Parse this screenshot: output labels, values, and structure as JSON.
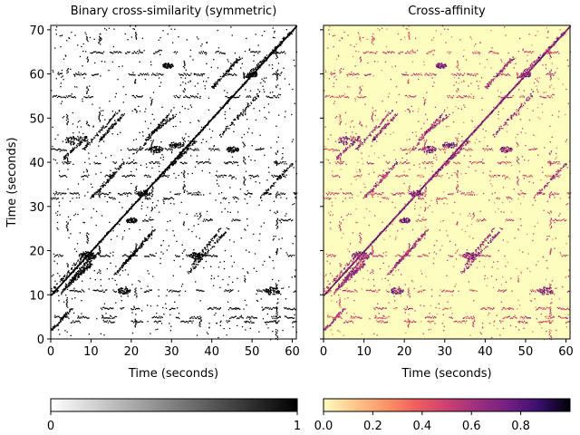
{
  "chart_data": [
    {
      "type": "heatmap",
      "title": "Binary cross-similarity (symmetric)",
      "xlabel": "Time (seconds)",
      "ylabel": "Time (seconds)",
      "xlim": [
        0,
        61
      ],
      "ylim": [
        0,
        71
      ],
      "xticks": [
        0,
        10,
        20,
        30,
        40,
        50,
        60
      ],
      "yticks": [
        0,
        10,
        20,
        30,
        40,
        50,
        60,
        70
      ],
      "colormap": "gray_r",
      "colorbar": {
        "range": [
          0,
          1
        ],
        "ticks": [
          "0",
          "1"
        ],
        "placement": "bottom"
      },
      "structure": {
        "main_diagonal_offset_seconds": 10,
        "diagonal_segments": [
          {
            "x": [
              0,
              9
            ],
            "y": [
              11,
              20
            ]
          },
          {
            "x": [
              2,
              10
            ],
            "y": [
              10,
              19
            ]
          },
          {
            "x": [
              3,
              12
            ],
            "y": [
              11,
              20
            ]
          },
          {
            "x": [
              5,
              10
            ],
            "y": [
              13,
              17
            ]
          },
          {
            "x": [
              3,
              9
            ],
            "y": [
              41,
              46
            ]
          },
          {
            "x": [
              8,
              17
            ],
            "y": [
              43,
              52
            ]
          },
          {
            "x": [
              12,
              18
            ],
            "y": [
              45,
              51
            ]
          },
          {
            "x": [
              22,
              30
            ],
            "y": [
              43,
              52
            ]
          },
          {
            "x": [
              24,
              31
            ],
            "y": [
              46,
              51
            ]
          },
          {
            "x": [
              16,
              25
            ],
            "y": [
              15,
              24
            ]
          },
          {
            "x": [
              18,
              26
            ],
            "y": [
              17,
              25
            ]
          },
          {
            "x": [
              10,
              18
            ],
            "y": [
              32,
              40
            ]
          },
          {
            "x": [
              26,
              36
            ],
            "y": [
              36,
              45
            ]
          },
          {
            "x": [
              34,
              44
            ],
            "y": [
              15,
              25
            ]
          },
          {
            "x": [
              35,
              42
            ],
            "y": [
              17,
              25
            ]
          },
          {
            "x": [
              40,
              47
            ],
            "y": [
              57,
              64
            ]
          },
          {
            "x": [
              42,
              52
            ],
            "y": [
              46,
              56
            ]
          },
          {
            "x": [
              48,
              60
            ],
            "y": [
              59,
              70
            ]
          },
          {
            "x": [
              0,
              5
            ],
            "y": [
              2,
              7
            ]
          },
          {
            "x": [
              52,
              60
            ],
            "y": [
              32,
              40
            ]
          }
        ],
        "dense_clusters": [
          {
            "x": 6,
            "y": 45,
            "r": 1.8
          },
          {
            "x": 9,
            "y": 19,
            "r": 1.5
          },
          {
            "x": 23,
            "y": 33,
            "r": 1.2
          },
          {
            "x": 26,
            "y": 43,
            "r": 1.3
          },
          {
            "x": 31,
            "y": 44,
            "r": 1.2
          },
          {
            "x": 29,
            "y": 62,
            "r": 1.0
          },
          {
            "x": 50,
            "y": 60,
            "r": 1.0
          },
          {
            "x": 36,
            "y": 19,
            "r": 1.3
          },
          {
            "x": 45,
            "y": 43,
            "r": 1.1
          },
          {
            "x": 55,
            "y": 11,
            "r": 1.5
          },
          {
            "x": 18,
            "y": 11,
            "r": 1.2
          },
          {
            "x": 20,
            "y": 27,
            "r": 1.0
          }
        ],
        "horizontal_bands_y": [
          65,
          60,
          55,
          43,
          40,
          37,
          33,
          32,
          27,
          19,
          11,
          7,
          5,
          4
        ]
      }
    },
    {
      "type": "heatmap",
      "title": "Cross-affinity",
      "xlabel": "Time (seconds)",
      "ylabel": "",
      "xlim": [
        0,
        61
      ],
      "ylim": [
        0,
        71
      ],
      "xticks": [
        0,
        10,
        20,
        30,
        40,
        50,
        60
      ],
      "yticks": [
        0,
        10,
        20,
        30,
        40,
        50,
        60,
        70
      ],
      "colormap": "magma_r",
      "colorbar": {
        "range": [
          0,
          1
        ],
        "ticks": [
          "0.0",
          "0.2",
          "0.4",
          "0.6",
          "0.8"
        ],
        "placement": "bottom"
      },
      "colors": {
        "background": "#fcfdbf",
        "low": "#f07f60",
        "mid": "#c33b75",
        "high": "#721f81",
        "peak": "#3b0f70"
      }
    }
  ]
}
